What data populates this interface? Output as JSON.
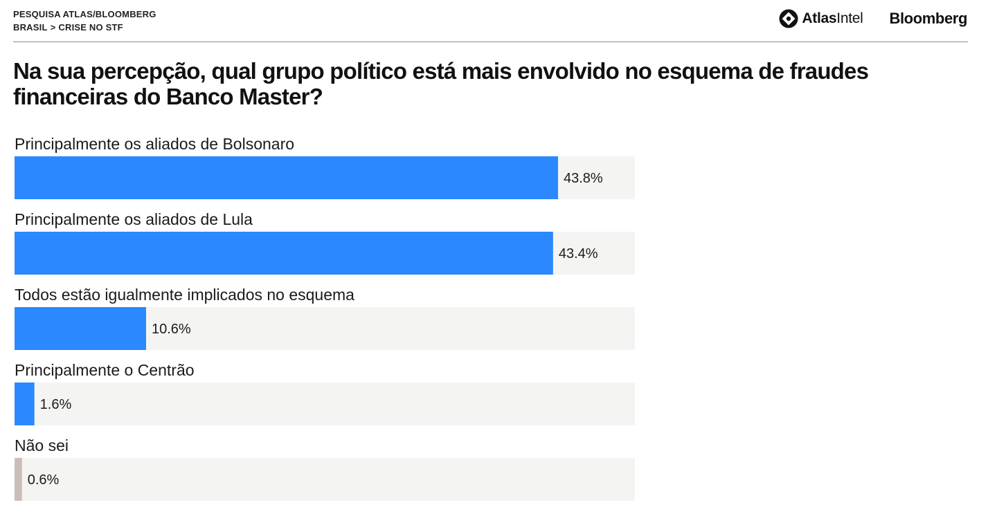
{
  "header": {
    "kicker_line1": "PESQUISA ATLAS/BLOOMBERG",
    "kicker_line2_a": "BRASIL",
    "kicker_sep": ">",
    "kicker_line2_b": "CRISE NO STF",
    "brand_atlas_bold": "Atlas",
    "brand_atlas_light": "Intel",
    "brand_bloomberg": "Bloomberg"
  },
  "colors": {
    "primary_bar": "#2b88ff",
    "secondary_bar": "#c9bfb8",
    "track": "#f4f4f3"
  },
  "chart_data": {
    "type": "bar",
    "orientation": "horizontal",
    "title": "Na sua percepção, qual grupo político está mais envolvido no esquema de fraudes financeiras do Banco Master?",
    "categories": [
      "Principalmente os aliados de Bolsonaro",
      "Principalmente os aliados de Lula",
      "Todos estão igualmente implicados no esquema",
      "Principalmente o Centrão",
      "Não sei"
    ],
    "values": [
      43.8,
      43.4,
      10.6,
      1.6,
      0.6
    ],
    "value_labels": [
      "43.8%",
      "43.4%",
      "10.6%",
      "1.6%",
      "0.6%"
    ],
    "bar_colors": [
      "#2b88ff",
      "#2b88ff",
      "#2b88ff",
      "#2b88ff",
      "#c9bfb8"
    ],
    "xlim": [
      0,
      50
    ],
    "grid": false,
    "legend": "none"
  }
}
